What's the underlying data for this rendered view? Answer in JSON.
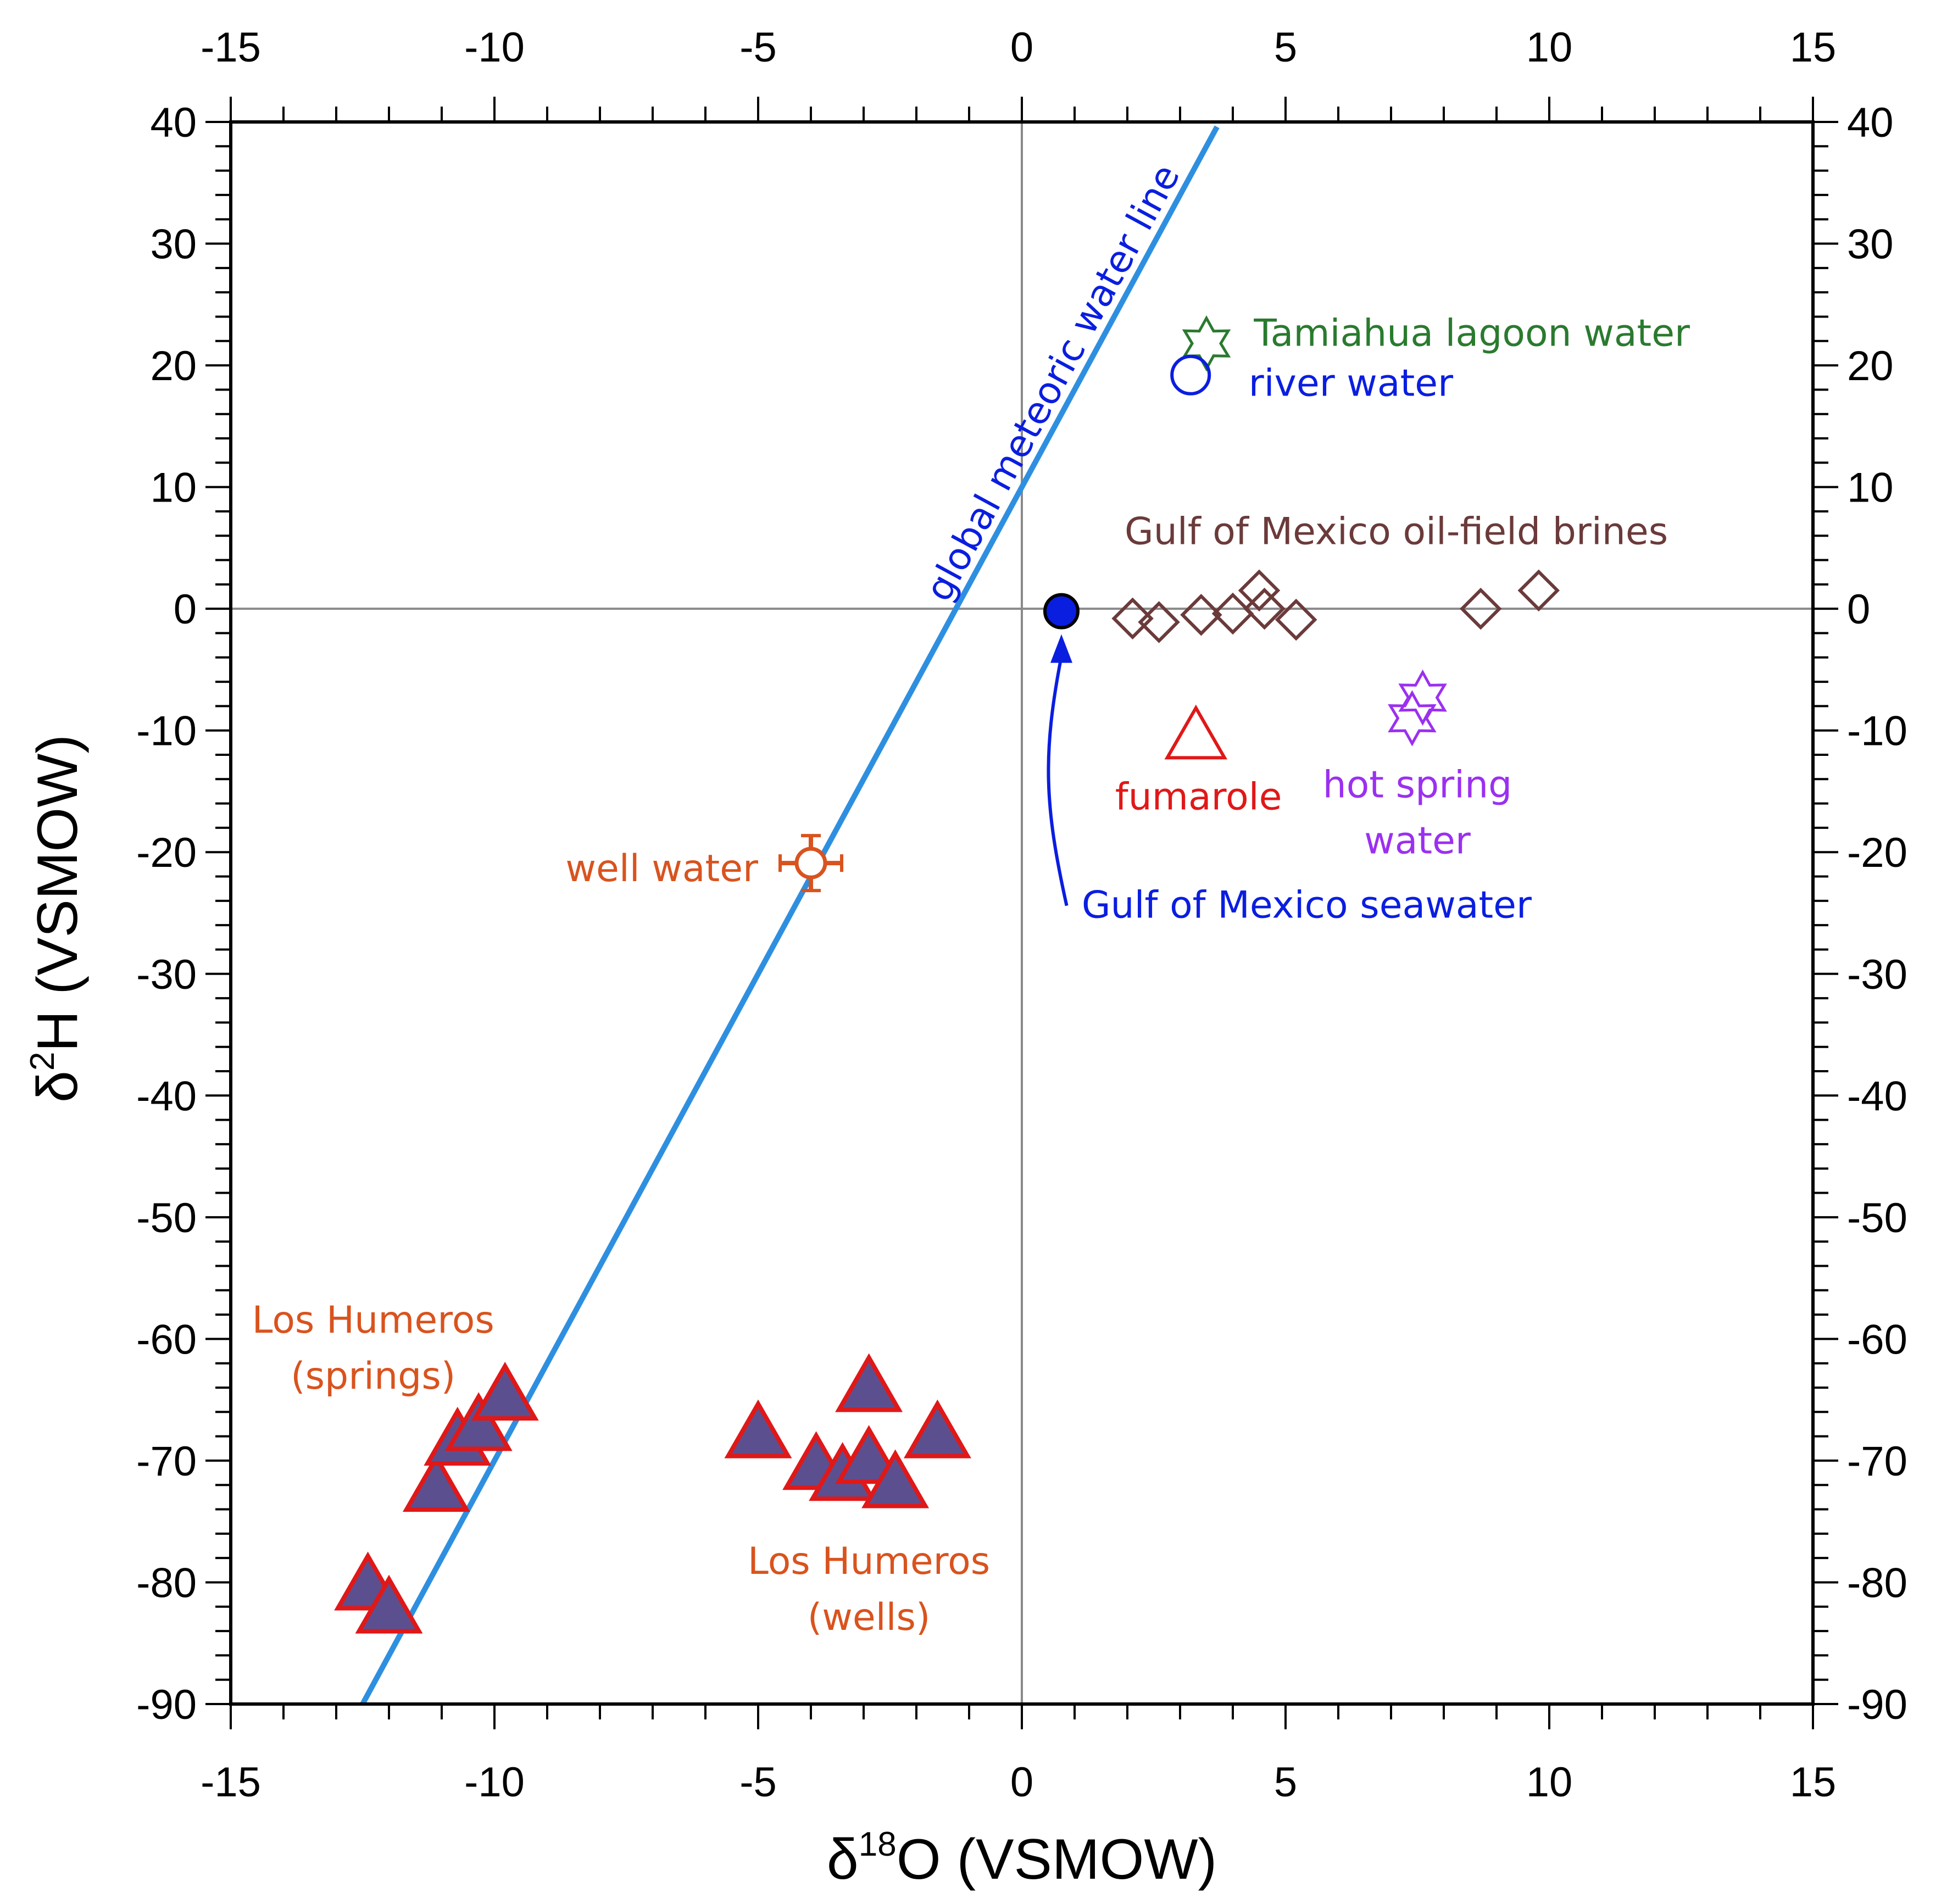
{
  "chart_data": {
    "type": "scatter",
    "xlabel": "δ18O (VSMOW)",
    "xlabel_base": "δ",
    "xlabel_sup": "18",
    "xlabel_rest": "O (VSMOW)",
    "ylabel": "δ2H (VSMOW)",
    "ylabel_base": "δ",
    "ylabel_sup": "2",
    "ylabel_rest": "H (VSMOW)",
    "xlim": [
      -15,
      15
    ],
    "ylim": [
      -90,
      40
    ],
    "x_ticks": [
      "-15",
      "-10",
      "-5",
      "0",
      "5",
      "10",
      "15"
    ],
    "y_ticks": [
      "40",
      "30",
      "20",
      "10",
      "0",
      "-10",
      "-20",
      "-30",
      "-40",
      "-50",
      "-60",
      "-70",
      "-80",
      "-90"
    ],
    "reference_lines": [
      {
        "x": 0
      },
      {
        "y": 0
      }
    ],
    "gmwl": {
      "label": "global meteoric water line",
      "equation": "δ2H = 8·δ18O + 10",
      "x_range": [
        -12.5,
        3.7
      ],
      "color": "#2e8fe0"
    },
    "series": [
      {
        "name": "Los Humeros (springs)",
        "marker": "filled-triangle",
        "color": "#5c4f8f",
        "edge": "#e01818",
        "points": [
          [
            -12.4,
            -80.3
          ],
          [
            -12.0,
            -82.2
          ],
          [
            -11.1,
            -72.2
          ],
          [
            -10.7,
            -68.4
          ],
          [
            -10.3,
            -67.2
          ],
          [
            -9.8,
            -64.7
          ]
        ]
      },
      {
        "name": "Los Humeros (wells)",
        "marker": "filled-triangle",
        "color": "#5c4f8f",
        "edge": "#e01818",
        "points": [
          [
            -5.0,
            -67.8
          ],
          [
            -3.9,
            -70.4
          ],
          [
            -3.4,
            -71.3
          ],
          [
            -2.9,
            -69.9
          ],
          [
            -2.9,
            -64.0
          ],
          [
            -2.4,
            -71.9
          ],
          [
            -1.6,
            -67.8
          ]
        ]
      },
      {
        "name": "well water",
        "marker": "circle-cross",
        "color": "#d9531e",
        "points": [
          [
            -4.0,
            -20.9
          ]
        ]
      },
      {
        "name": "Gulf of Mexico seawater",
        "marker": "filled-circle",
        "color": "#0a1ee0",
        "points": [
          [
            0.75,
            -0.2
          ]
        ]
      },
      {
        "name": "Tamiahua lagoon water",
        "marker": "hexagram",
        "color": "#2a7a2f",
        "points": [
          [
            3.5,
            21.8
          ]
        ]
      },
      {
        "name": "river water",
        "marker": "open-circle",
        "color": "#0a1ee0",
        "points": [
          [
            3.2,
            19.2
          ]
        ]
      },
      {
        "name": "Gulf of Mexico oil-field brines",
        "marker": "open-diamond",
        "color": "#6b3a3a",
        "points": [
          [
            2.1,
            -0.8
          ],
          [
            2.6,
            -1.1
          ],
          [
            3.4,
            -0.5
          ],
          [
            4.0,
            -0.4
          ],
          [
            4.5,
            1.5
          ],
          [
            4.6,
            0.0
          ],
          [
            5.2,
            -0.9
          ],
          [
            8.7,
            0.0
          ],
          [
            9.8,
            1.5
          ]
        ]
      },
      {
        "name": "fumarole",
        "marker": "open-triangle",
        "color": "#e01818",
        "points": [
          [
            3.3,
            -10.5
          ]
        ]
      },
      {
        "name": "hot spring water",
        "marker": "hexagram",
        "color": "#9b30f0",
        "points": [
          [
            7.6,
            -7.3
          ],
          [
            7.4,
            -9.0
          ]
        ]
      }
    ],
    "annotations": [
      {
        "text": "Tamiahua lagoon water",
        "color": "#2a7a2f",
        "lines": [
          "Tamiahua lagoon water"
        ]
      },
      {
        "text": "river water",
        "color": "#0a1ee0",
        "lines": [
          "river water"
        ]
      },
      {
        "text": "Gulf of Mexico oil-field brines",
        "color": "#6b3a3a",
        "lines": [
          "Gulf of Mexico oil-field brines"
        ]
      },
      {
        "text": "fumarole",
        "color": "#e01818",
        "lines": [
          "fumarole"
        ]
      },
      {
        "text": "hot spring water",
        "color": "#9b30f0",
        "lines": [
          "hot spring",
          "water"
        ]
      },
      {
        "text": "well water",
        "color": "#d9531e",
        "lines": [
          "well water"
        ]
      },
      {
        "text": "Gulf of Mexico seawater",
        "color": "#0a1ee0",
        "lines": [
          "Gulf of Mexico seawater"
        ]
      },
      {
        "text": "Los Humeros (springs)",
        "color": "#d9531e",
        "lines": [
          "Los Humeros",
          "(springs)"
        ]
      },
      {
        "text": "Los Humeros (wells)",
        "color": "#d9531e",
        "lines": [
          "Los Humeros",
          "(wells)"
        ]
      }
    ],
    "arrow": {
      "from_label": "Gulf of Mexico seawater",
      "to_series": "Gulf of Mexico seawater",
      "color": "#0a1ee0"
    },
    "grid": false,
    "mirrored_axes": true
  }
}
